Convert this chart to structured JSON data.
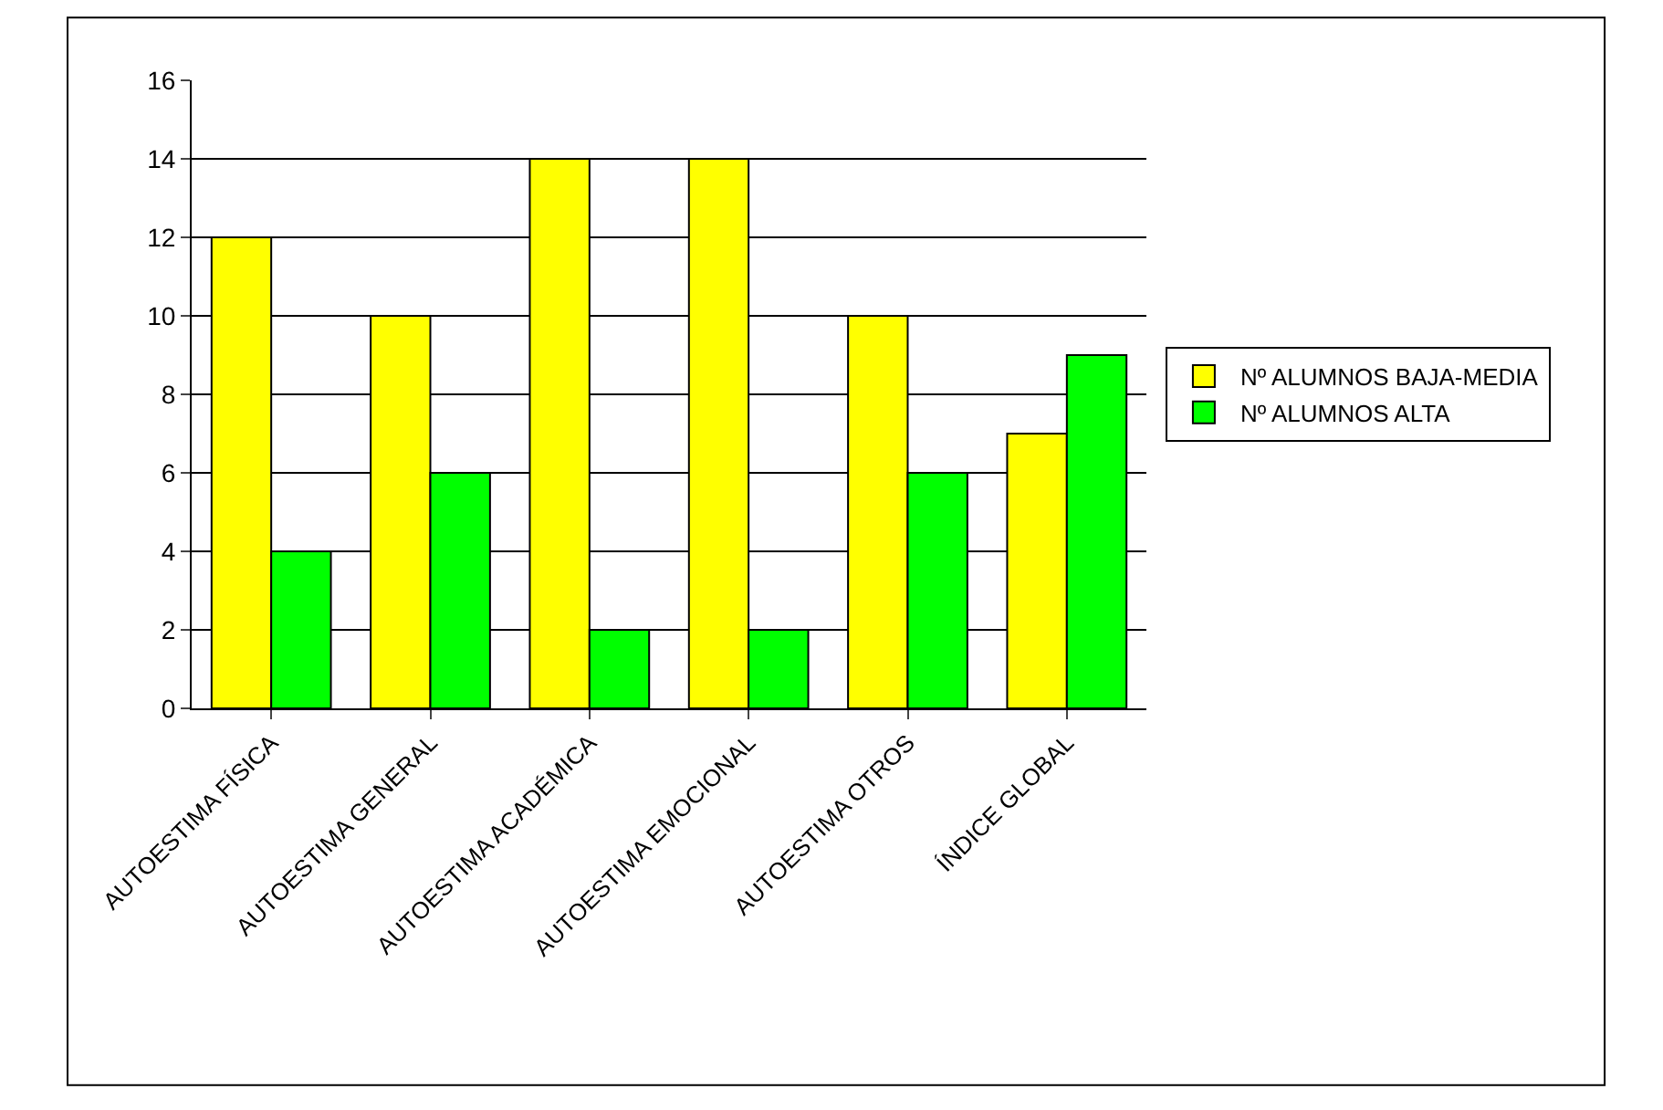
{
  "chart_data": {
    "type": "bar",
    "categories": [
      "AUTOESTIMA FÍSICA",
      "AUTOESTIMA GENERAL",
      "AUTOESTIMA ACADÉMICA",
      "AUTOESTIMA EMOCIONAL",
      "AUTOESTIMA OTROS",
      "ÍNDICE GLOBAL"
    ],
    "series": [
      {
        "name": "Nº ALUMNOS BAJA-MEDIA",
        "color": "#ffff00",
        "values": [
          12,
          10,
          14,
          14,
          10,
          7
        ]
      },
      {
        "name": "Nº ALUMNOS ALTA",
        "color": "#00ff00",
        "values": [
          4,
          6,
          2,
          2,
          6,
          9
        ]
      }
    ],
    "ylim": [
      0,
      16
    ],
    "yticks": [
      0,
      2,
      4,
      6,
      8,
      10,
      12,
      14,
      16
    ],
    "grid": "y",
    "legend": "right"
  }
}
